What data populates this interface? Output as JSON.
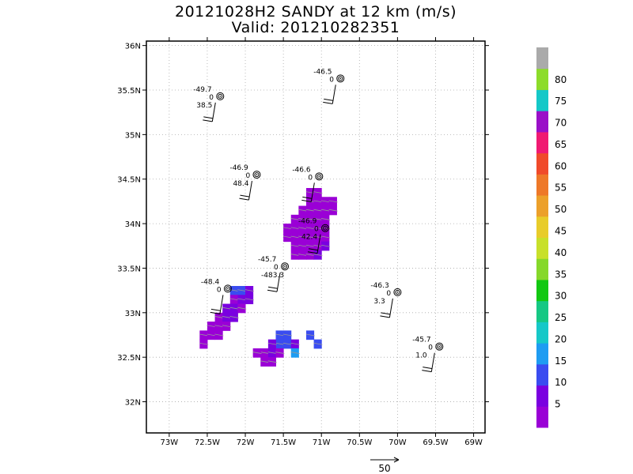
{
  "header": {
    "title": "20121028H2 SANDY at 12 km (m/s)",
    "valid": "Valid: 201210282351"
  },
  "chart_data": {
    "type": "heatmap",
    "xlim": [
      -73.3,
      -68.85
    ],
    "ylim": [
      31.65,
      36.05
    ],
    "x_ticks": [
      {
        "v": -73,
        "label": "73W"
      },
      {
        "v": -72.5,
        "label": "72.5W"
      },
      {
        "v": -72,
        "label": "72W"
      },
      {
        "v": -71.5,
        "label": "71.5W"
      },
      {
        "v": -71,
        "label": "71W"
      },
      {
        "v": -70.5,
        "label": "70.5W"
      },
      {
        "v": -70,
        "label": "70W"
      },
      {
        "v": -69.5,
        "label": "69.5W"
      },
      {
        "v": -69,
        "label": "69W"
      }
    ],
    "y_ticks": [
      {
        "v": 32,
        "label": "32N"
      },
      {
        "v": 32.5,
        "label": "32.5N"
      },
      {
        "v": 33,
        "label": "33N"
      },
      {
        "v": 33.5,
        "label": "33.5N"
      },
      {
        "v": 34,
        "label": "34N"
      },
      {
        "v": 34.5,
        "label": "34.5N"
      },
      {
        "v": 35,
        "label": "35N"
      },
      {
        "v": 35.5,
        "label": "35.5N"
      },
      {
        "v": 36,
        "label": "36N"
      }
    ],
    "grid": true,
    "colorbar": {
      "labels": [
        "5",
        "10",
        "15",
        "20",
        "25",
        "30",
        "35",
        "40",
        "45",
        "50",
        "55",
        "60",
        "65",
        "70",
        "75",
        "80"
      ],
      "colors": [
        "#9a00d6",
        "#7a00e0",
        "#3a4cf0",
        "#1e9cf2",
        "#16c8c8",
        "#16c884",
        "#12c812",
        "#86d82a",
        "#c8e02a",
        "#e8cc2a",
        "#eca02a",
        "#ee7828",
        "#f04a2a",
        "#f01a72",
        "#9a10c8",
        "#14c8c8",
        "#8cdc2a",
        "#aaaaaa"
      ]
    },
    "wind_cells": [
      [
        -71.15,
        34.35,
        8
      ],
      [
        -71.05,
        34.35,
        8
      ],
      [
        -71.15,
        34.25,
        9
      ],
      [
        -71.05,
        34.25,
        8
      ],
      [
        -70.95,
        34.25,
        8
      ],
      [
        -70.85,
        34.25,
        8
      ],
      [
        -71.25,
        34.15,
        9
      ],
      [
        -71.15,
        34.15,
        8
      ],
      [
        -71.05,
        34.15,
        9
      ],
      [
        -70.95,
        34.15,
        8
      ],
      [
        -70.85,
        34.15,
        9
      ],
      [
        -71.35,
        34.05,
        8
      ],
      [
        -71.25,
        34.05,
        8
      ],
      [
        -71.15,
        34.05,
        9
      ],
      [
        -71.05,
        34.05,
        8
      ],
      [
        -70.95,
        34.05,
        8
      ],
      [
        -71.45,
        33.95,
        8
      ],
      [
        -71.35,
        33.95,
        9
      ],
      [
        -71.25,
        33.95,
        8
      ],
      [
        -71.15,
        33.95,
        8
      ],
      [
        -71.05,
        33.95,
        9
      ],
      [
        -70.95,
        33.95,
        8
      ],
      [
        -71.45,
        33.85,
        9
      ],
      [
        -71.35,
        33.85,
        8
      ],
      [
        -71.25,
        33.85,
        8
      ],
      [
        -71.15,
        33.85,
        8
      ],
      [
        -71.05,
        33.85,
        9
      ],
      [
        -70.95,
        33.85,
        8
      ],
      [
        -71.35,
        33.75,
        8
      ],
      [
        -71.25,
        33.75,
        9
      ],
      [
        -71.15,
        33.75,
        8
      ],
      [
        -71.05,
        33.75,
        9
      ],
      [
        -70.95,
        33.75,
        13
      ],
      [
        -71.35,
        33.65,
        8
      ],
      [
        -71.25,
        33.65,
        8
      ],
      [
        -71.15,
        33.65,
        8
      ],
      [
        -71.05,
        33.65,
        13
      ],
      [
        -72.15,
        33.25,
        18
      ],
      [
        -72.05,
        33.25,
        18
      ],
      [
        -71.95,
        33.25,
        13
      ],
      [
        -72.15,
        33.15,
        8
      ],
      [
        -72.05,
        33.15,
        14
      ],
      [
        -71.95,
        33.15,
        13
      ],
      [
        -72.25,
        33.05,
        14
      ],
      [
        -72.15,
        33.05,
        13
      ],
      [
        -72.05,
        33.05,
        8
      ],
      [
        -72.35,
        32.95,
        8
      ],
      [
        -72.25,
        32.95,
        13
      ],
      [
        -72.15,
        32.95,
        13
      ],
      [
        -72.45,
        32.85,
        8
      ],
      [
        -72.35,
        32.85,
        8
      ],
      [
        -72.25,
        32.85,
        8
      ],
      [
        -72.55,
        32.75,
        8
      ],
      [
        -72.45,
        32.75,
        9
      ],
      [
        -72.35,
        32.75,
        8
      ],
      [
        -72.55,
        32.65,
        8
      ],
      [
        -71.55,
        32.75,
        18
      ],
      [
        -71.45,
        32.75,
        18
      ],
      [
        -71.55,
        32.65,
        18
      ],
      [
        -71.45,
        32.65,
        18
      ],
      [
        -71.65,
        32.65,
        13
      ],
      [
        -71.35,
        32.65,
        13
      ],
      [
        -71.75,
        32.55,
        8
      ],
      [
        -71.65,
        32.55,
        13
      ],
      [
        -71.55,
        32.55,
        8
      ],
      [
        -71.35,
        32.55,
        22
      ],
      [
        -71.85,
        32.55,
        9
      ],
      [
        -71.75,
        32.45,
        8
      ],
      [
        -71.65,
        32.45,
        8
      ],
      [
        -71.15,
        32.75,
        18
      ],
      [
        -71.05,
        32.65,
        18
      ]
    ],
    "dropsondes": [
      {
        "lon": -70.75,
        "lat": 35.63,
        "labels": [
          "-46.5",
          "0"
        ]
      },
      {
        "lon": -72.33,
        "lat": 35.43,
        "labels": [
          "-49.7",
          "0",
          "38.5"
        ]
      },
      {
        "lon": -71.85,
        "lat": 34.55,
        "labels": [
          "-46.9",
          "0",
          "48.4"
        ]
      },
      {
        "lon": -71.03,
        "lat": 34.53,
        "labels": [
          "-46.6",
          "0"
        ]
      },
      {
        "lon": -70.95,
        "lat": 33.95,
        "labels": [
          "-46.9",
          "0",
          "42.4"
        ]
      },
      {
        "lon": -71.48,
        "lat": 33.52,
        "labels": [
          "-45.7",
          "0",
          "-483.3"
        ]
      },
      {
        "lon": -72.23,
        "lat": 33.27,
        "labels": [
          "-48.4",
          "0"
        ]
      },
      {
        "lon": -70.0,
        "lat": 33.23,
        "labels": [
          "-46.3",
          "0",
          "3.3"
        ]
      },
      {
        "lon": -69.45,
        "lat": 32.62,
        "labels": [
          "-45.7",
          "0",
          "1.0"
        ]
      }
    ],
    "reference_vector": {
      "label": "50"
    }
  }
}
